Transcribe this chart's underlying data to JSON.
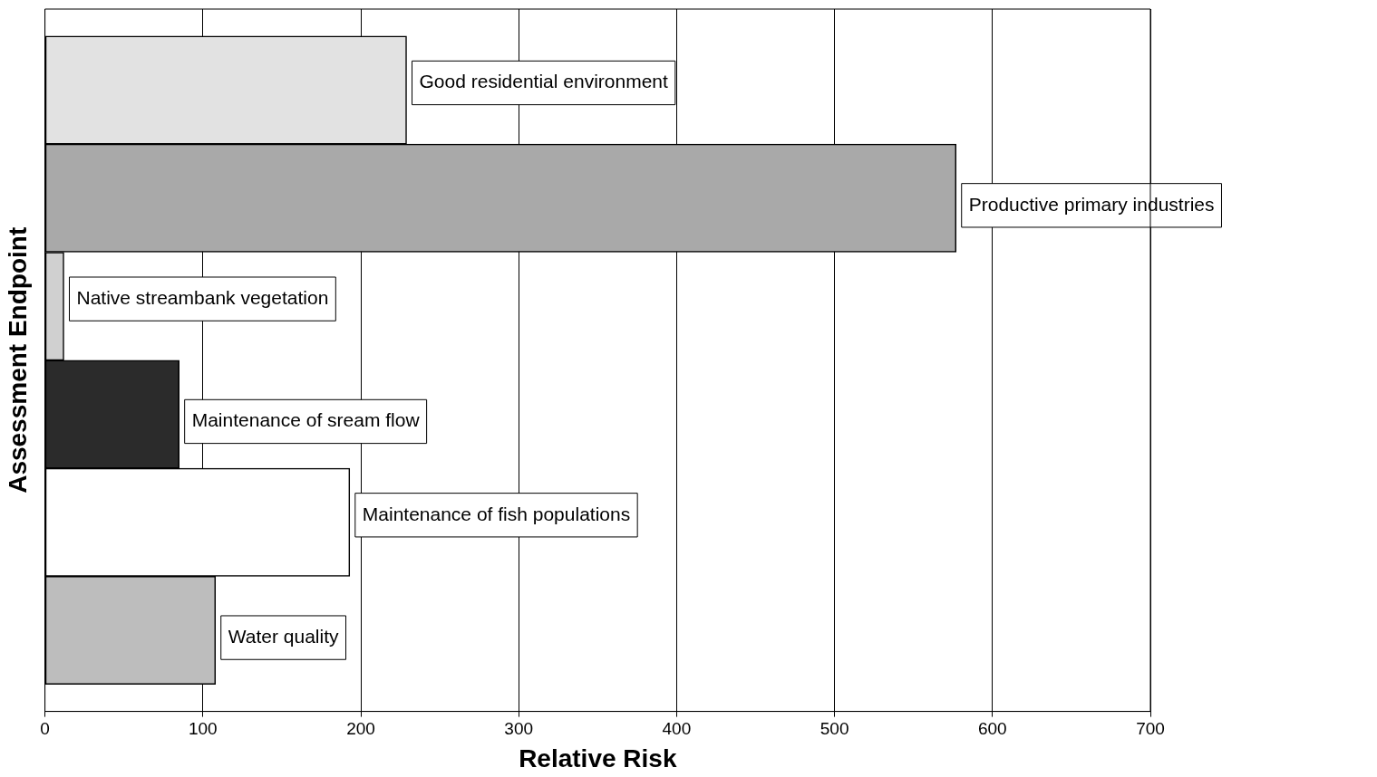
{
  "chart_data": {
    "type": "bar",
    "orientation": "horizontal",
    "xlabel": "Relative Risk",
    "ylabel": "Assessment Endpoint",
    "categories": [
      "Good residential environment",
      "Productive primary industries",
      "Native streambank vegetation",
      "Maintenance of sream flow",
      "Maintenance of fish populations",
      "Water quality"
    ],
    "values": [
      229,
      577,
      12,
      85,
      193,
      108
    ],
    "colors": [
      "#e2e2e2",
      "#a9a9a9",
      "#d0d0d0",
      "#2b2b2b",
      "#ffffff",
      "#bdbdbd"
    ],
    "xlim": [
      0,
      700
    ],
    "xticks": [
      0,
      100,
      200,
      300,
      400,
      500,
      600,
      700
    ],
    "grid": "x"
  }
}
